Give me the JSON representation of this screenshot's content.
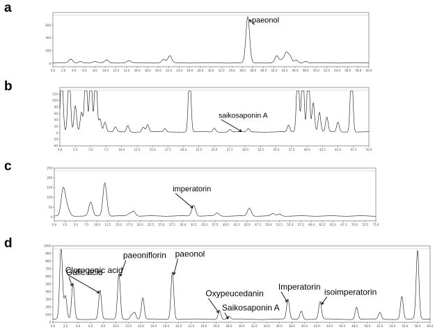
{
  "panels": [
    {
      "letter": "a"
    },
    {
      "letter": "b"
    },
    {
      "letter": "c"
    },
    {
      "letter": "d"
    }
  ],
  "chart_data": [
    {
      "panel": "a",
      "type": "line",
      "title": "",
      "xlabel": "",
      "ylabel": "",
      "xlim": [
        0,
        60
      ],
      "ylim": [
        -50,
        800
      ],
      "yticks": [
        0,
        200,
        400,
        600
      ],
      "xticks": [
        0,
        2,
        4,
        6,
        8,
        10,
        12,
        14,
        16,
        18,
        20,
        22,
        24,
        26,
        28,
        30,
        32,
        34,
        36,
        38,
        40,
        42,
        44,
        46,
        48,
        50,
        52,
        54,
        56,
        58,
        60
      ],
      "grid": false,
      "baseline": 10,
      "peaks": [
        {
          "x": 3.4,
          "height": 60
        },
        {
          "x": 5.2,
          "height": 25
        },
        {
          "x": 8.0,
          "height": 20
        },
        {
          "x": 10.2,
          "height": 45
        },
        {
          "x": 14.4,
          "height": 35
        },
        {
          "x": 21.0,
          "height": 55
        },
        {
          "x": 22.2,
          "height": 110
        },
        {
          "x": 37.0,
          "height": 720
        },
        {
          "x": 42.5,
          "height": 110
        },
        {
          "x": 43.5,
          "height": 45
        },
        {
          "x": 44.3,
          "height": 150
        },
        {
          "x": 45.0,
          "height": 100
        },
        {
          "x": 46.2,
          "height": 45
        },
        {
          "x": 48.0,
          "height": 25
        }
      ],
      "annotations": [
        {
          "text": "paeonol",
          "x": 37.0,
          "size": 11
        }
      ]
    },
    {
      "panel": "b",
      "type": "line",
      "title": "",
      "xlabel": "",
      "ylabel": "",
      "xlim": [
        0,
        50
      ],
      "ylim": [
        -40,
        140
      ],
      "yticks": [
        -40,
        -20,
        0,
        20,
        40,
        60,
        80,
        100,
        120
      ],
      "xticks": [
        0,
        2.5,
        5,
        7.5,
        10,
        12.5,
        15,
        17.5,
        20,
        22.5,
        25,
        27.5,
        30,
        32.5,
        35,
        37.5,
        40,
        42.5,
        45,
        47.5,
        50
      ],
      "grid": false,
      "baseline": 3,
      "peaks": [
        {
          "x": 0.3,
          "height": 200
        },
        {
          "x": 1.5,
          "height": 200
        },
        {
          "x": 2.5,
          "height": 80
        },
        {
          "x": 3.5,
          "height": 60
        },
        {
          "x": 4.2,
          "height": 200
        },
        {
          "x": 5.0,
          "height": 200
        },
        {
          "x": 5.8,
          "height": 200
        },
        {
          "x": 6.5,
          "height": 40
        },
        {
          "x": 7.3,
          "height": 30
        },
        {
          "x": 9.0,
          "height": 15
        },
        {
          "x": 11.0,
          "height": 20
        },
        {
          "x": 13.5,
          "height": 15
        },
        {
          "x": 14.2,
          "height": 22
        },
        {
          "x": 17.0,
          "height": 10
        },
        {
          "x": 21.0,
          "height": 200
        },
        {
          "x": 25.0,
          "height": 12
        },
        {
          "x": 27.5,
          "height": 8
        },
        {
          "x": 30.5,
          "height": 10
        },
        {
          "x": 37.0,
          "height": 20
        },
        {
          "x": 38.5,
          "height": 200
        },
        {
          "x": 39.3,
          "height": 200
        },
        {
          "x": 40.2,
          "height": 200
        },
        {
          "x": 41.0,
          "height": 90
        },
        {
          "x": 42.0,
          "height": 60
        },
        {
          "x": 43.2,
          "height": 45
        },
        {
          "x": 45.0,
          "height": 30
        },
        {
          "x": 47.2,
          "height": 200
        }
      ],
      "annotations": [
        {
          "text": "saikosaponin A",
          "x": 29.5,
          "size": 10.5
        }
      ]
    },
    {
      "panel": "c",
      "type": "line",
      "title": "",
      "xlabel": "",
      "ylabel": "",
      "xlim": [
        0,
        75
      ],
      "ylim": [
        -20,
        250
      ],
      "yticks": [
        0,
        50,
        100,
        150,
        200,
        250
      ],
      "xticks": [
        0,
        2.5,
        5,
        7.5,
        10,
        12.5,
        15,
        17.5,
        20,
        22.5,
        25,
        27.5,
        30,
        32.5,
        35,
        37.5,
        40,
        42.5,
        45,
        47.5,
        50,
        52.5,
        55,
        57.5,
        60,
        62.5,
        65,
        67.5,
        70,
        72.5,
        75
      ],
      "grid": false,
      "baseline": 5,
      "peaks": [
        {
          "x": 2.0,
          "height": 120
        },
        {
          "x": 2.6,
          "height": 55
        },
        {
          "x": 3.3,
          "height": 25
        },
        {
          "x": 8.5,
          "height": 70
        },
        {
          "x": 11.8,
          "height": 170
        },
        {
          "x": 17.5,
          "height": 12
        },
        {
          "x": 18.5,
          "height": 25
        },
        {
          "x": 32.5,
          "height": 55
        },
        {
          "x": 38.0,
          "height": 15
        },
        {
          "x": 45.5,
          "height": 40
        },
        {
          "x": 51.0,
          "height": 12
        },
        {
          "x": 52.5,
          "height": 10
        }
      ],
      "annotations": [
        {
          "text": "imperatorin",
          "x": 32.5,
          "size": 11
        }
      ]
    },
    {
      "panel": "d",
      "type": "line",
      "title": "",
      "xlabel": "",
      "ylabel": "",
      "xlim": [
        0,
        60
      ],
      "ylim": [
        0,
        1000
      ],
      "yticks": [
        0,
        100,
        200,
        300,
        400,
        500,
        600,
        700,
        800,
        900,
        1000
      ],
      "xticks": [
        0,
        2,
        4,
        6,
        8,
        10,
        12,
        14,
        16,
        18,
        20,
        22,
        24,
        26,
        28,
        30,
        32,
        34,
        36,
        38,
        40,
        42,
        44,
        46,
        48,
        50,
        52,
        54,
        56,
        58,
        60
      ],
      "grid": false,
      "baseline": 40,
      "peaks": [
        {
          "x": 1.3,
          "height": 950
        },
        {
          "x": 2.0,
          "height": 300
        },
        {
          "x": 3.2,
          "height": 470
        },
        {
          "x": 7.5,
          "height": 380
        },
        {
          "x": 10.5,
          "height": 600
        },
        {
          "x": 12.5,
          "height": 60
        },
        {
          "x": 13.0,
          "height": 90
        },
        {
          "x": 14.3,
          "height": 280
        },
        {
          "x": 19.0,
          "height": 620
        },
        {
          "x": 26.5,
          "height": 120
        },
        {
          "x": 28.0,
          "height": 40
        },
        {
          "x": 37.4,
          "height": 260
        },
        {
          "x": 39.5,
          "height": 110
        },
        {
          "x": 42.5,
          "height": 230
        },
        {
          "x": 48.3,
          "height": 160
        },
        {
          "x": 52.0,
          "height": 90
        },
        {
          "x": 55.5,
          "height": 300
        },
        {
          "x": 58.0,
          "height": 900
        }
      ],
      "annotations": [
        {
          "text": "Clorogenic acid",
          "x": 7.5,
          "size": 12
        },
        {
          "text": "Galic acid",
          "x": 3.2,
          "size": 12
        },
        {
          "text": "paeoniflorin",
          "x": 10.5,
          "size": 12
        },
        {
          "text": "paeonol",
          "x": 19.0,
          "size": 12
        },
        {
          "text": "Oxypeucedanin",
          "x": 26.5,
          "size": 12
        },
        {
          "text": "Saikosaponin A",
          "x": 28.0,
          "size": 12
        },
        {
          "text": "Imperatorin",
          "x": 37.4,
          "size": 12
        },
        {
          "text": "isoimperatorin",
          "x": 42.5,
          "size": 12
        }
      ]
    }
  ]
}
